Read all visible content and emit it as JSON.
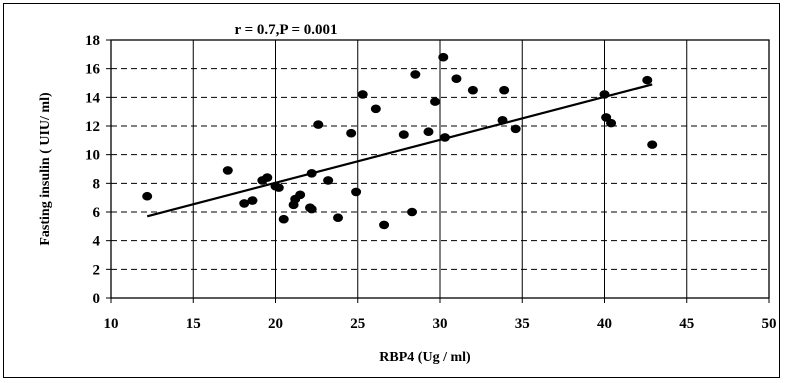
{
  "chart_data": {
    "type": "scatter",
    "title": "",
    "annotation": "r = 0.7,P = 0.001",
    "xlabel": "RBP4 (Ug / ml)",
    "ylabel": "Fasting insulin ( UIU/ ml)",
    "xlim": [
      10,
      50
    ],
    "ylim": [
      0,
      18
    ],
    "x_ticks": [
      "10",
      "15",
      "20",
      "25",
      "30",
      "35",
      "40",
      "45",
      "50"
    ],
    "y_ticks": [
      "0",
      "2",
      "4",
      "6",
      "8",
      "10",
      "12",
      "14",
      "16",
      "18"
    ],
    "grid": {
      "horizontal": "dashed",
      "vertical": "solid"
    },
    "legend": "none",
    "colors": {
      "points": "#000000",
      "trendline": "#000000",
      "grid": "#000000"
    },
    "trendline": {
      "x": [
        12.2,
        42.9
      ],
      "y": [
        5.7,
        14.9
      ]
    },
    "points": [
      {
        "x": 12.2,
        "y": 7.1
      },
      {
        "x": 17.1,
        "y": 8.9
      },
      {
        "x": 18.1,
        "y": 6.6
      },
      {
        "x": 18.6,
        "y": 6.8
      },
      {
        "x": 19.2,
        "y": 8.2
      },
      {
        "x": 19.5,
        "y": 8.4
      },
      {
        "x": 20.0,
        "y": 7.8
      },
      {
        "x": 20.2,
        "y": 7.7
      },
      {
        "x": 20.5,
        "y": 5.5
      },
      {
        "x": 21.1,
        "y": 6.5
      },
      {
        "x": 21.2,
        "y": 6.9
      },
      {
        "x": 21.5,
        "y": 7.2
      },
      {
        "x": 22.1,
        "y": 6.3
      },
      {
        "x": 22.2,
        "y": 6.2
      },
      {
        "x": 22.2,
        "y": 8.7
      },
      {
        "x": 22.6,
        "y": 12.1
      },
      {
        "x": 23.2,
        "y": 8.2
      },
      {
        "x": 23.8,
        "y": 5.6
      },
      {
        "x": 24.6,
        "y": 11.5
      },
      {
        "x": 24.9,
        "y": 7.4
      },
      {
        "x": 25.3,
        "y": 14.2
      },
      {
        "x": 26.1,
        "y": 13.2
      },
      {
        "x": 26.6,
        "y": 5.1
      },
      {
        "x": 27.8,
        "y": 11.4
      },
      {
        "x": 28.3,
        "y": 6.0
      },
      {
        "x": 28.5,
        "y": 15.6
      },
      {
        "x": 29.3,
        "y": 11.6
      },
      {
        "x": 29.7,
        "y": 13.7
      },
      {
        "x": 30.2,
        "y": 16.8
      },
      {
        "x": 30.3,
        "y": 11.2
      },
      {
        "x": 31.0,
        "y": 15.3
      },
      {
        "x": 32.0,
        "y": 14.5
      },
      {
        "x": 33.8,
        "y": 12.4
      },
      {
        "x": 33.9,
        "y": 14.5
      },
      {
        "x": 34.6,
        "y": 11.8
      },
      {
        "x": 40.0,
        "y": 14.2
      },
      {
        "x": 40.1,
        "y": 12.6
      },
      {
        "x": 40.4,
        "y": 12.2
      },
      {
        "x": 42.6,
        "y": 15.2
      },
      {
        "x": 42.9,
        "y": 10.7
      }
    ]
  }
}
